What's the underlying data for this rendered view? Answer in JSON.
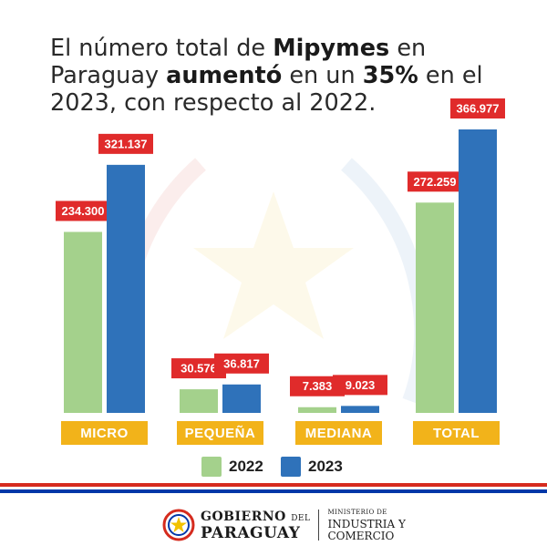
{
  "headline": {
    "p1": "El número total de ",
    "b1": "Mipymes",
    "p2": " en Paraguay ",
    "b2": "aumentó",
    "p3": " en un ",
    "b3": "35%",
    "p4": " en el 2023, con respecto al 2022."
  },
  "chart_data": {
    "type": "bar",
    "title": "",
    "xlabel": "",
    "ylabel": "",
    "grid": false,
    "legend_position": "bottom",
    "categories": [
      "MICRO",
      "PEQUEÑA",
      "MEDIANA",
      "TOTAL"
    ],
    "series": [
      {
        "name": "2022",
        "color": "#a4d18c",
        "values": [
          234300,
          30576,
          7383,
          272259
        ],
        "labels": [
          "234.300",
          "30.576",
          "7.383",
          "272.259"
        ]
      },
      {
        "name": "2023",
        "color": "#2f72ba",
        "values": [
          321137,
          36817,
          9023,
          366977
        ],
        "labels": [
          "321.137",
          "36.817",
          "9.023",
          "366.977"
        ]
      }
    ],
    "label_color": "#e02b2b",
    "category_label_color": "#f2b31a"
  },
  "footer": {
    "gov_line1a": "GOBIERNO",
    "gov_line1b": "DEL",
    "gov_line2": "PARAGUAY",
    "ministry_line1": "MINISTERIO DE",
    "ministry_line2": "INDUSTRIA Y",
    "ministry_line3": "COMERCIO",
    "flag_colors": [
      "#d52b1e",
      "#ffffff",
      "#0038a8"
    ]
  }
}
